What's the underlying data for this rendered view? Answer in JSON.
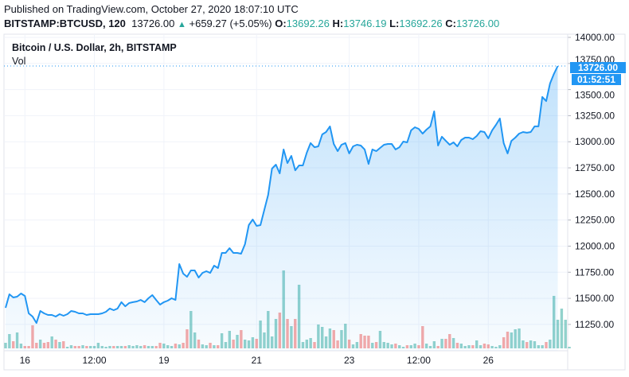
{
  "header": {
    "published": "Published on TradingView.com, October 27, 2020 18:07:10 UTC",
    "symbol": "BITSTAMP:BTCUSD, 120",
    "last": "13726.00",
    "change_icon": "triangle-up-icon",
    "change": "+659.27 (+5.05%)",
    "o_label": "O:",
    "o": "13692.26",
    "h_label": "H:",
    "h": "13746.19",
    "l_label": "L:",
    "l": "13692.26",
    "c_label": "C:",
    "c": "13726.00"
  },
  "chart_data": {
    "type": "area",
    "title": "Bitcoin / U.S. Dollar, 2h, BITSTAMP",
    "volume_label": "Vol",
    "ylim": [
      11100,
      14100
    ],
    "yticks": [
      "14000.00",
      "13750.00",
      "13500.00",
      "13250.00",
      "13000.00",
      "12750.00",
      "12500.00",
      "12250.00",
      "12000.00",
      "11750.00",
      "11500.00",
      "11250.00"
    ],
    "ytick_values": [
      14000,
      13750,
      13500,
      13250,
      13000,
      12750,
      12500,
      12250,
      12000,
      11750,
      11500,
      11250
    ],
    "xticks": [
      "16",
      "12:00",
      "19",
      "21",
      "23",
      "12:00",
      "26"
    ],
    "xtick_bar_index": [
      5,
      23,
      41,
      65,
      89,
      107,
      125
    ],
    "grid": true,
    "last_price_label": "13726.00",
    "countdown_label": "01:52:51",
    "colors": {
      "line": "#2196f3",
      "up": "#26a69a",
      "down": "#ef5350",
      "label_bg": "#2196f3"
    },
    "close": [
      11409,
      11539,
      11508,
      11516,
      11546,
      11523,
      11356,
      11325,
      11264,
      11379,
      11356,
      11341,
      11341,
      11325,
      11348,
      11333,
      11348,
      11379,
      11371,
      11356,
      11356,
      11341,
      11348,
      11348,
      11348,
      11356,
      11371,
      11402,
      11386,
      11402,
      11463,
      11424,
      11455,
      11463,
      11470,
      11485,
      11463,
      11501,
      11531,
      11485,
      11440,
      11463,
      11478,
      11501,
      11485,
      11828,
      11737,
      11706,
      11767,
      11767,
      11699,
      11744,
      11760,
      11744,
      11813,
      11790,
      11935,
      11935,
      11981,
      11935,
      11935,
      11927,
      12019,
      12202,
      12255,
      12194,
      12202,
      12346,
      12491,
      12743,
      12781,
      12697,
      12926,
      12796,
      12865,
      12727,
      12773,
      12773,
      12895,
      12987,
      12948,
      12956,
      13070,
      13093,
      13147,
      12979,
      12910,
      12971,
      12987,
      12888,
      12956,
      12971,
      12964,
      12926,
      12788,
      12926,
      12910,
      12941,
      12971,
      12979,
      12979,
      12926,
      12948,
      13002,
      12994,
      13109,
      13139,
      13124,
      13078,
      13116,
      13147,
      13291,
      12964,
      13048,
      13009,
      12971,
      12994,
      12956,
      13017,
      13040,
      13040,
      13025,
      13055,
      13101,
      13093,
      13032,
      13109,
      13162,
      13223,
      12987,
      12888,
      13009,
      13040,
      13078,
      13093,
      13086,
      13093,
      13147,
      13147,
      13429,
      13390,
      13558,
      13650,
      13726
    ],
    "volume_relative": [
      7,
      18,
      9,
      20,
      6,
      3,
      3,
      29,
      7,
      11,
      7,
      8,
      15,
      11,
      8,
      9,
      2,
      4,
      3,
      3,
      4,
      3,
      3,
      3,
      7,
      3,
      2,
      3,
      3,
      3,
      3,
      3,
      4,
      3,
      4,
      3,
      4,
      3,
      3,
      3,
      7,
      6,
      4,
      3,
      6,
      5,
      7,
      24,
      47,
      20,
      11,
      5,
      4,
      7,
      4,
      4,
      19,
      8,
      22,
      11,
      17,
      23,
      11,
      10,
      14,
      12,
      35,
      20,
      47,
      15,
      37,
      45,
      98,
      37,
      28,
      37,
      80,
      8,
      11,
      13,
      8,
      30,
      27,
      15,
      25,
      23,
      10,
      23,
      31,
      11,
      5,
      8,
      18,
      16,
      16,
      7,
      8,
      22,
      8,
      7,
      5,
      6,
      4,
      2,
      4,
      4,
      6,
      4,
      28,
      6,
      3,
      9,
      3,
      12,
      12,
      18,
      13,
      7,
      6,
      3,
      4,
      4,
      10,
      4,
      6,
      5,
      3,
      2,
      4,
      14,
      21,
      20,
      24,
      25,
      10,
      8,
      10,
      9,
      4,
      4,
      8,
      11,
      66,
      36,
      50,
      36,
      2
    ]
  }
}
